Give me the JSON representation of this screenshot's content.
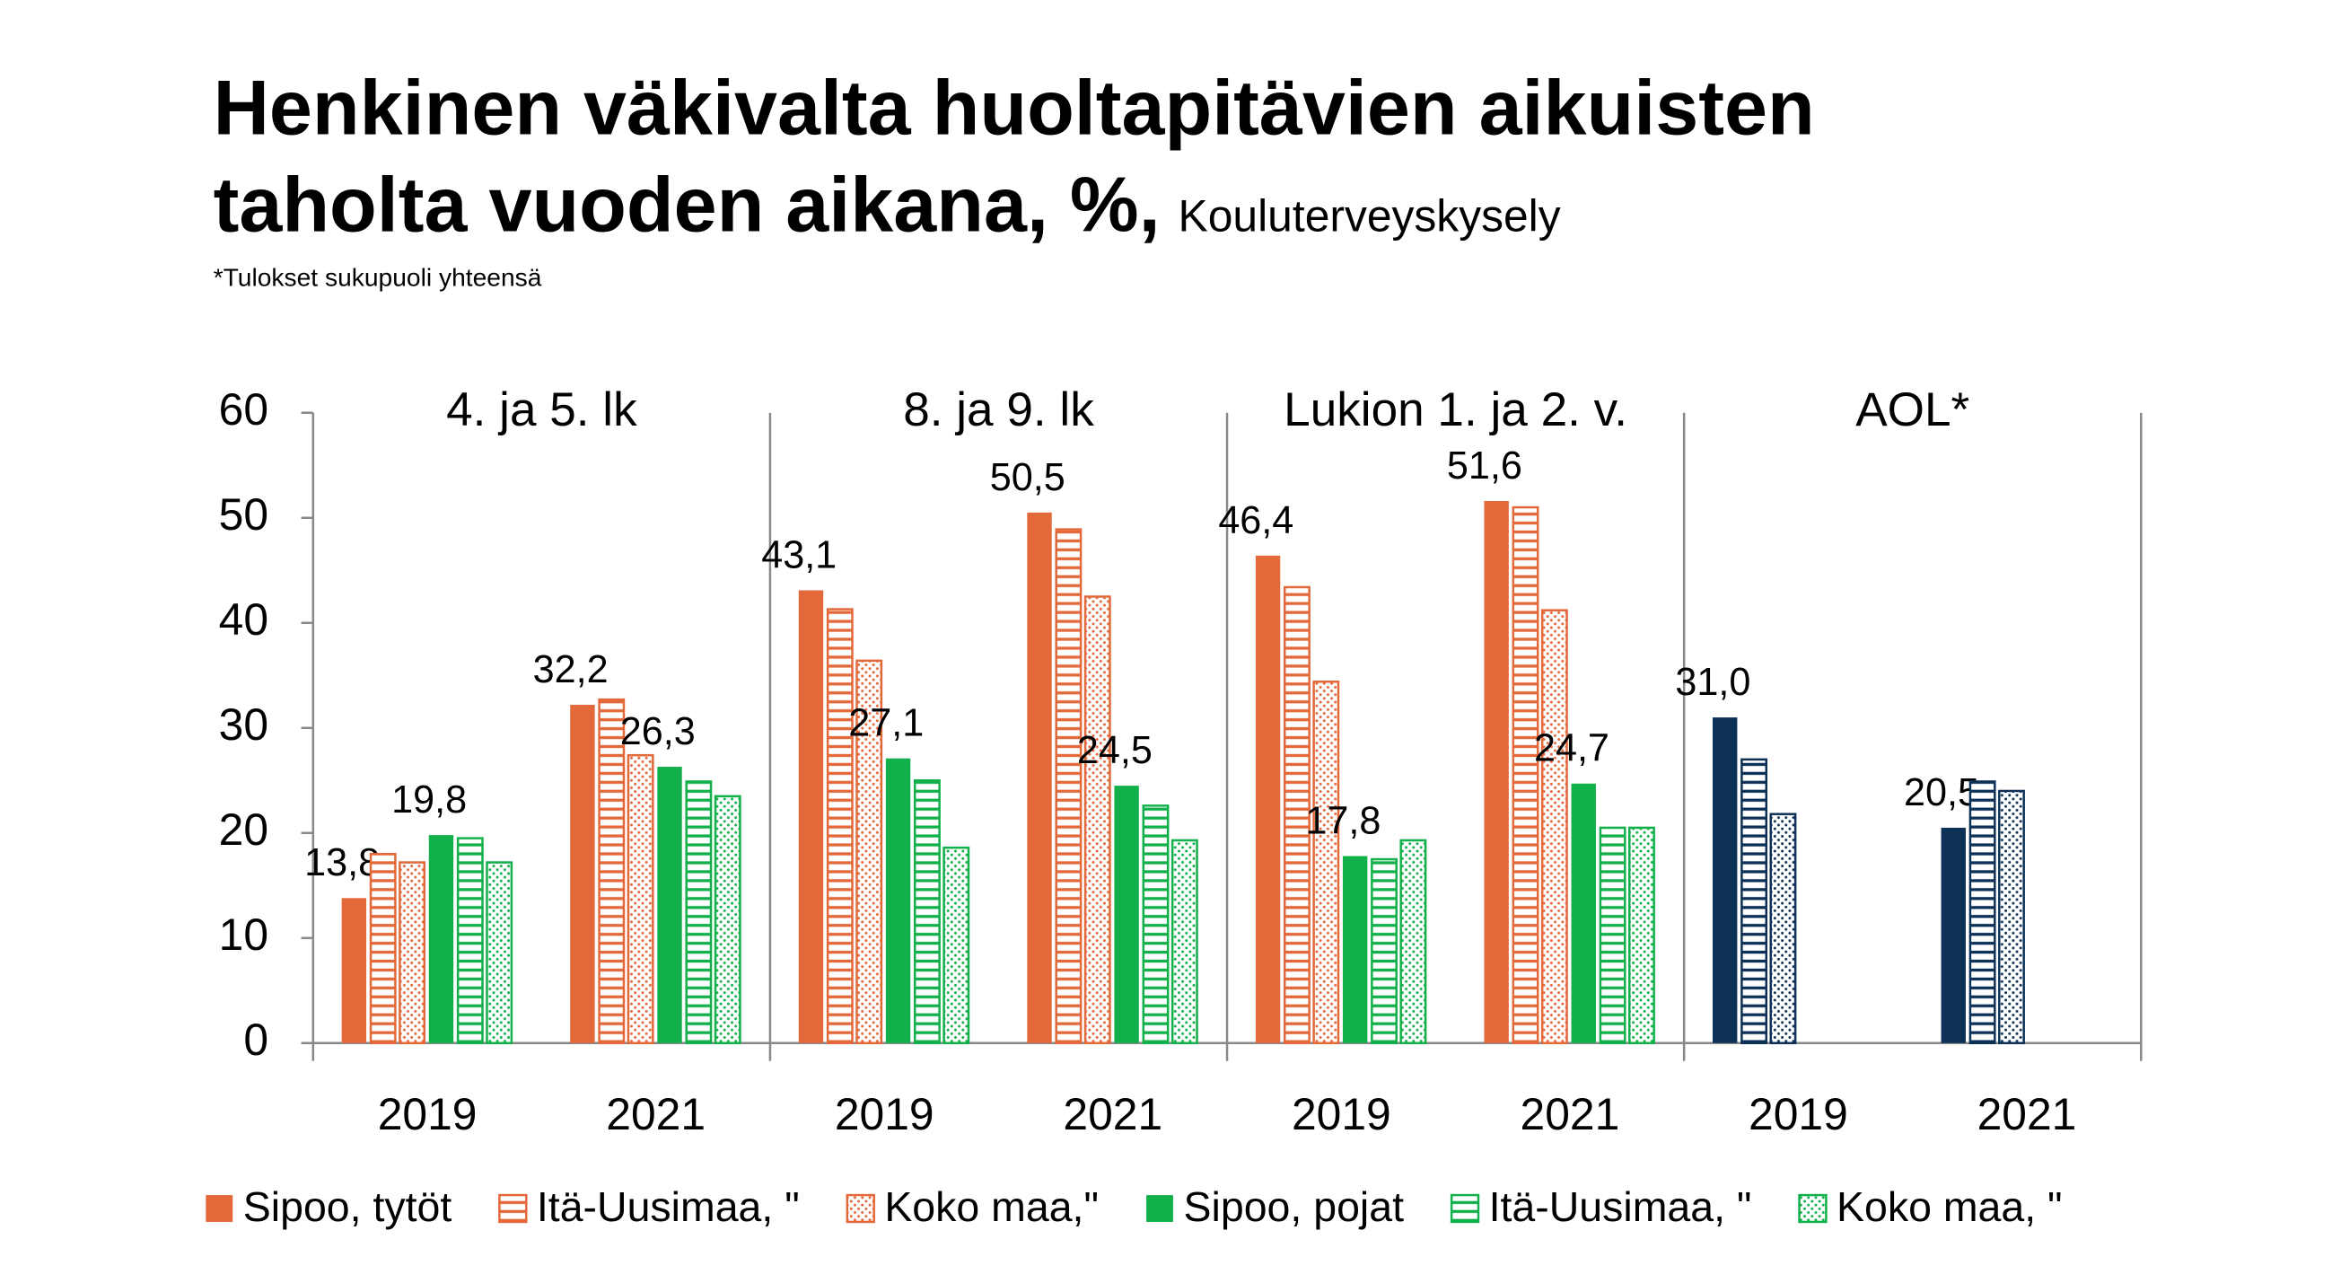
{
  "chart_data": {
    "type": "bar",
    "title_lines": [
      "Henkinen väkivalta huoltapitävien aikuisten",
      "taholta vuoden aikana, %,"
    ],
    "source": "Kouluterveyskysely",
    "note": "*Tulokset sukupuoli yhteensä",
    "groups": [
      {
        "label": "4. ja 5. lk"
      },
      {
        "label": "8. ja 9. lk"
      },
      {
        "label": "Lukion 1. ja 2. v."
      },
      {
        "label": "AOL*",
        "color": "#0d3156"
      }
    ],
    "categories": [
      "2019",
      "2021",
      "2019",
      "2021",
      "2019",
      "2021",
      "2019",
      "2021"
    ],
    "series": [
      {
        "name": "Sipoo, tytöt",
        "color": "#e3683a",
        "pattern": "solid",
        "values": [
          13.8,
          32.2,
          43.1,
          50.5,
          46.4,
          51.6,
          31.0,
          20.5
        ],
        "value_labels": [
          "13,8",
          "32,2",
          "43,1",
          "50,5",
          "46,4",
          "51,6",
          "31,0",
          "20,5"
        ]
      },
      {
        "name": "Itä-Uusimaa, \"",
        "color": "#e3683a",
        "pattern": "hstripe",
        "values": [
          18.0,
          32.7,
          41.3,
          48.9,
          43.4,
          51.0,
          27.0,
          24.9
        ]
      },
      {
        "name": "Koko maa,\"",
        "color": "#e3683a",
        "pattern": "dots",
        "values": [
          17.2,
          27.4,
          36.4,
          42.5,
          34.4,
          41.2,
          21.8,
          24.0
        ]
      },
      {
        "name": "Sipoo, pojat",
        "color": "#12b04a",
        "pattern": "solid",
        "values": [
          19.8,
          26.3,
          27.1,
          24.5,
          17.8,
          24.7,
          null,
          null
        ],
        "value_labels": [
          "19,8",
          "26,3",
          "27,1",
          "24,5",
          "17,8",
          "24,7",
          null,
          null
        ]
      },
      {
        "name": "Itä-Uusimaa, \"",
        "color": "#12b04a",
        "pattern": "hstripe",
        "values": [
          19.5,
          24.9,
          25.0,
          22.6,
          17.5,
          20.5,
          null,
          null
        ]
      },
      {
        "name": "Koko maa, \"",
        "color": "#12b04a",
        "pattern": "dots",
        "values": [
          17.2,
          23.5,
          18.6,
          19.3,
          19.3,
          20.5,
          null,
          null
        ]
      }
    ],
    "ylim": [
      0,
      60
    ],
    "yticks": [
      0,
      10,
      20,
      30,
      40,
      50,
      60
    ],
    "grid": false,
    "legend": "bottom"
  }
}
